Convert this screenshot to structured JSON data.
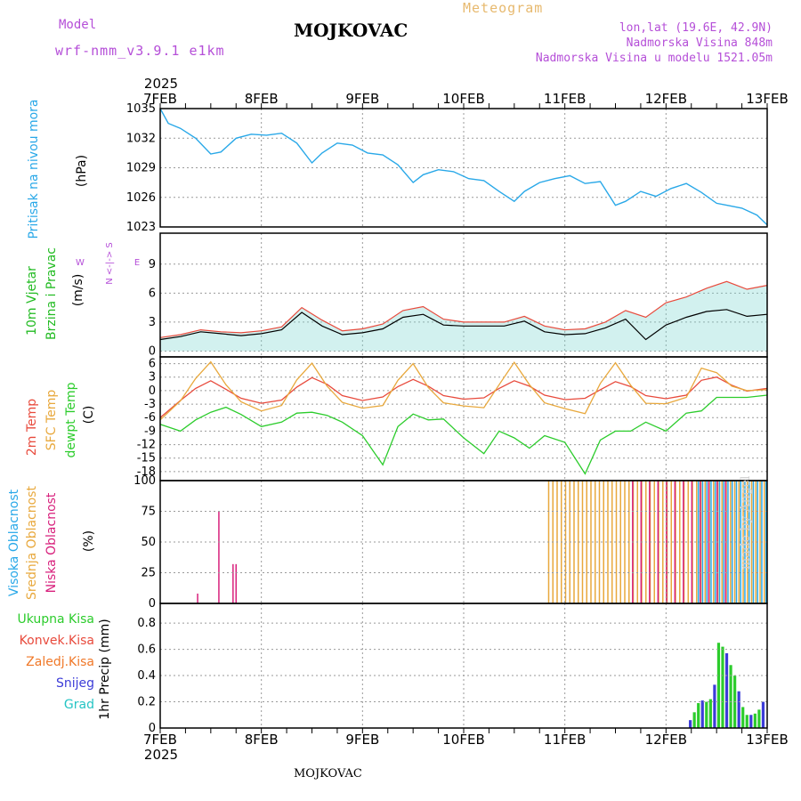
{
  "header": {
    "model_label": "Model",
    "model_name": "wrf-nmm_v3.9.1 e1km",
    "title": "MOJKOVAC",
    "subtitle": "Meteogram",
    "location_lines": [
      "lon,lat (19.6E, 42.9N)",
      "Nadmorska Visina 848m",
      "Nadmorska Visina u modelu 1521.05m"
    ]
  },
  "footer": {
    "station": "MOJKOVAC",
    "credit": "made by Angel"
  },
  "time_axis": {
    "year": "2025",
    "ticks": [
      "7FEB",
      "8FEB",
      "9FEB",
      "10FEB",
      "11FEB",
      "12FEB",
      "13FEB"
    ]
  },
  "colors": {
    "pressure": "#29a8e8",
    "wind_label": "#22bb22",
    "temp2m": "#e84a3c",
    "sfc": "#e8a83c",
    "dew": "#2ccc2c",
    "high_cloud": "#29a8e8",
    "mid_cloud": "#e8a83c",
    "low_cloud": "#d8207c",
    "total_rain": "#2ccc2c",
    "convective": "#e84a3c",
    "freezing": "#f07828",
    "snow": "#3c3cd8",
    "hail": "#24c4c4",
    "purple": "#b54fd8"
  },
  "chart_data": [
    {
      "type": "line",
      "panel": "pressure",
      "ylabel": [
        "Pritisak na nivou mora",
        "(hPa)"
      ],
      "ylim": [
        1023,
        1035
      ],
      "yticks": [
        "1035",
        "1032",
        "1029",
        "1026",
        "1023"
      ],
      "x_days": [
        0,
        0.08,
        0.2,
        0.35,
        0.5,
        0.6,
        0.75,
        0.9,
        1.05,
        1.2,
        1.35,
        1.5,
        1.6,
        1.75,
        1.9,
        2.05,
        2.2,
        2.35,
        2.5,
        2.6,
        2.75,
        2.9,
        3.05,
        3.2,
        3.35,
        3.5,
        3.6,
        3.75,
        3.9,
        4.05,
        4.2,
        4.35,
        4.5,
        4.6,
        4.75,
        4.9,
        5.05,
        5.2,
        5.35,
        5.5,
        5.6,
        5.75,
        5.9,
        6.0
      ],
      "series": [
        {
          "key": "pressure",
          "values": [
            1035,
            1033.5,
            1033,
            1032,
            1030.4,
            1030.6,
            1032,
            1032.4,
            1032.3,
            1032.5,
            1031.5,
            1029.5,
            1030.5,
            1031.5,
            1031.3,
            1030.5,
            1030.3,
            1029.3,
            1027.5,
            1028.3,
            1028.8,
            1028.6,
            1027.9,
            1027.7,
            1026.6,
            1025.6,
            1026.6,
            1027.5,
            1027.9,
            1028.2,
            1027.4,
            1027.6,
            1025.2,
            1025.6,
            1026.6,
            1026.1,
            1026.9,
            1027.4,
            1026.5,
            1025.4,
            1025.2,
            1024.9,
            1024.2,
            1023.2
          ]
        }
      ]
    },
    {
      "type": "line",
      "panel": "wind",
      "ylabel": [
        "10m Vjetar",
        "Brzina i Pravac",
        "(m/s)"
      ],
      "ylim": [
        -0.6,
        12.2
      ],
      "yticks": [
        "9",
        "6",
        "3",
        "0"
      ],
      "compass": [
        "N",
        "S",
        "W",
        "E"
      ],
      "x_days": [
        0,
        0.2,
        0.4,
        0.6,
        0.8,
        1.0,
        1.2,
        1.4,
        1.6,
        1.8,
        2.0,
        2.2,
        2.4,
        2.6,
        2.8,
        3.0,
        3.2,
        3.4,
        3.6,
        3.8,
        4.0,
        4.2,
        4.4,
        4.6,
        4.8,
        5.0,
        5.2,
        5.4,
        5.6,
        5.8,
        6.0
      ],
      "series": [
        {
          "key": "mean",
          "values": [
            1.2,
            1.5,
            2,
            1.8,
            1.6,
            1.8,
            2.2,
            4,
            2.6,
            1.7,
            1.9,
            2.3,
            3.5,
            3.8,
            2.7,
            2.6,
            2.6,
            2.6,
            3.1,
            2,
            1.7,
            1.8,
            2.4,
            3.3,
            1.2,
            2.7,
            3.5,
            4.1,
            4.3,
            3.6,
            3.8
          ]
        },
        {
          "key": "gust",
          "values": [
            1.4,
            1.7,
            2.2,
            2,
            1.9,
            2.1,
            2.5,
            4.5,
            3.2,
            2.1,
            2.3,
            2.8,
            4.2,
            4.6,
            3.3,
            3,
            3,
            3,
            3.6,
            2.6,
            2.2,
            2.3,
            3,
            4.2,
            3.5,
            5,
            5.6,
            6.5,
            7.2,
            6.4,
            6.8
          ]
        }
      ]
    },
    {
      "type": "line",
      "panel": "temperature",
      "ylabel": [
        "2m Temp",
        "SFC Temp",
        "dewpt Temp",
        "(C)"
      ],
      "ylim": [
        -20,
        7.5
      ],
      "yticks": [
        "6",
        "3",
        "0",
        "-3",
        "-6",
        "-9",
        "-12",
        "-15",
        "-18"
      ],
      "x_days": [
        0,
        0.2,
        0.35,
        0.5,
        0.65,
        0.8,
        1.0,
        1.2,
        1.35,
        1.5,
        1.65,
        1.8,
        2.0,
        2.2,
        2.35,
        2.5,
        2.65,
        2.8,
        3.0,
        3.2,
        3.35,
        3.5,
        3.65,
        3.8,
        4.0,
        4.2,
        4.35,
        4.5,
        4.65,
        4.8,
        5.0,
        5.2,
        5.35,
        5.5,
        5.65,
        5.8,
        6.0
      ],
      "series": [
        {
          "key": "temp2m",
          "name": "2m Temp",
          "values": [
            -6,
            -2.2,
            0.5,
            2.2,
            0.3,
            -1.7,
            -2.8,
            -2.1,
            0.8,
            2.9,
            1.4,
            -1.1,
            -2.2,
            -1.4,
            0.9,
            2.5,
            1,
            -1.1,
            -1.9,
            -1.6,
            0.5,
            2.2,
            1,
            -1,
            -2,
            -1.7,
            0.2,
            2,
            0.9,
            -1.1,
            -1.8,
            -1,
            2.3,
            3,
            1.2,
            -0.1,
            0.5
          ]
        },
        {
          "key": "sfc",
          "name": "SFC Temp",
          "values": [
            -6.5,
            -2.3,
            2.7,
            6.4,
            1.3,
            -2.5,
            -4.5,
            -3.3,
            2.4,
            6.1,
            1,
            -2.6,
            -3.9,
            -3.3,
            2.3,
            6,
            0.7,
            -2.7,
            -3.4,
            -3.8,
            1.3,
            6.3,
            1.3,
            -2.7,
            -4,
            -5.1,
            1.6,
            6.2,
            1.2,
            -2.8,
            -2.9,
            -1.5,
            5,
            4,
            1,
            0,
            0.2
          ]
        },
        {
          "key": "dew",
          "name": "dewpt Temp",
          "values": [
            -7.5,
            -9,
            -6.5,
            -4.8,
            -3.7,
            -5.3,
            -8,
            -7,
            -5,
            -4.8,
            -5.5,
            -7,
            -10,
            -16.5,
            -8,
            -5.2,
            -6.5,
            -6.3,
            -10.5,
            -14,
            -9,
            -10.5,
            -12.8,
            -10,
            -11.5,
            -18.5,
            -11,
            -9,
            -9,
            -7,
            -9,
            -5,
            -4.5,
            -1.5,
            -1.5,
            -1.5,
            -1
          ]
        }
      ]
    },
    {
      "type": "bar",
      "panel": "clouds",
      "ylabel": [
        "Visoka Oblacnost",
        "Srednja Oblacnost",
        "Niska Oblacnost",
        "(%)"
      ],
      "ylim": [
        0,
        100
      ],
      "yticks": [
        "100",
        "75",
        "50",
        "25",
        "0"
      ],
      "low_cloud_spikes": [
        {
          "day": 0.37,
          "value": 8
        },
        {
          "day": 0.58,
          "value": 75
        },
        {
          "day": 0.72,
          "value": 32
        },
        {
          "day": 0.75,
          "value": 32
        }
      ],
      "mid_cloud_band": {
        "start_day": 3.84,
        "end_day": 6.0,
        "value": 100
      },
      "high_cloud_band": {
        "start_day": 5.3,
        "end_day": 6.0,
        "value": 100
      },
      "low_cloud_band": {
        "start_day": 4.65,
        "end_day": 5.6,
        "value": 100
      }
    },
    {
      "type": "bar",
      "panel": "precipitation",
      "ylabel": [
        "1hr Precip (mm)"
      ],
      "legend": [
        "Ukupna Kisa",
        "Konvek.Kisa",
        "Zaledj.Kisa",
        "Snijeg",
        "Grad"
      ],
      "ylim": [
        0,
        0.95
      ],
      "yticks": [
        "0.8",
        "0.6",
        "0.4",
        "0.2",
        "0"
      ],
      "bars": [
        {
          "day": 5.24,
          "value": 0.06
        },
        {
          "day": 5.28,
          "value": 0.12
        },
        {
          "day": 5.32,
          "value": 0.19
        },
        {
          "day": 5.36,
          "value": 0.21
        },
        {
          "day": 5.4,
          "value": 0.2
        },
        {
          "day": 5.44,
          "value": 0.22
        },
        {
          "day": 5.48,
          "value": 0.33
        },
        {
          "day": 5.52,
          "value": 0.65
        },
        {
          "day": 5.56,
          "value": 0.62
        },
        {
          "day": 5.6,
          "value": 0.57
        },
        {
          "day": 5.64,
          "value": 0.48
        },
        {
          "day": 5.68,
          "value": 0.4
        },
        {
          "day": 5.72,
          "value": 0.28
        },
        {
          "day": 5.76,
          "value": 0.16
        },
        {
          "day": 5.8,
          "value": 0.1
        },
        {
          "day": 5.84,
          "value": 0.1
        },
        {
          "day": 5.88,
          "value": 0.11
        },
        {
          "day": 5.92,
          "value": 0.14
        },
        {
          "day": 5.96,
          "value": 0.2
        }
      ]
    }
  ]
}
